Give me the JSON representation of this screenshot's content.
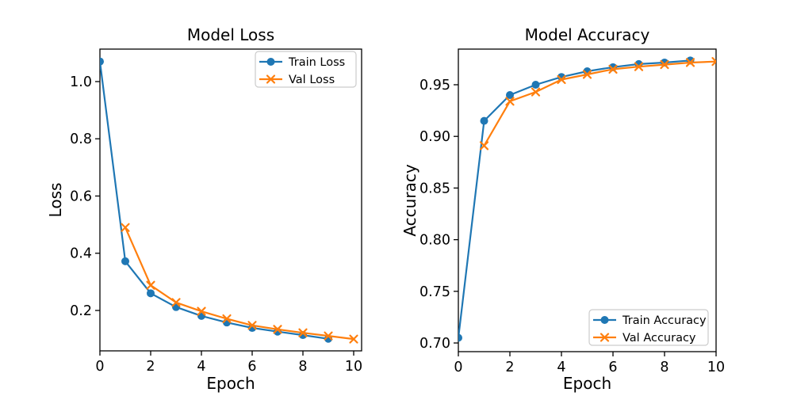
{
  "figure": {
    "background": "#ffffff"
  },
  "palette": {
    "train": "#1f77b4",
    "val": "#ff7f0e",
    "axis": "#000000",
    "text": "#000000",
    "legend_border": "#cccccc",
    "legend_bg": "#ffffff"
  },
  "chart_data": [
    {
      "id": "model-loss",
      "type": "line",
      "title": "Model Loss",
      "xlabel": "Epoch",
      "ylabel": "Loss",
      "xlim": [
        0,
        10.3125
      ],
      "ylim": [
        0.0588,
        1.1135
      ],
      "xticks": [
        0,
        2,
        4,
        6,
        8,
        10
      ],
      "xtick_labels": [
        "0",
        "2",
        "4",
        "6",
        "8",
        "10"
      ],
      "yticks": [
        0.2,
        0.4,
        0.6,
        0.8,
        1.0
      ],
      "ytick_labels": [
        "0.2",
        "0.4",
        "0.6",
        "0.8",
        "1.0"
      ],
      "grid": false,
      "legend_position": "upper right",
      "series": [
        {
          "name": "Train Loss",
          "color": "train",
          "marker": "circle",
          "x": [
            0,
            1,
            2,
            3,
            4,
            5,
            6,
            7,
            8,
            9
          ],
          "values": [
            1.07,
            0.372,
            0.26,
            0.212,
            0.181,
            0.158,
            0.139,
            0.126,
            0.114,
            0.101
          ]
        },
        {
          "name": "Val Loss",
          "color": "val",
          "marker": "x",
          "x": [
            1,
            2,
            3,
            4,
            5,
            6,
            7,
            8,
            9,
            10
          ],
          "values": [
            0.49,
            0.288,
            0.228,
            0.197,
            0.171,
            0.148,
            0.134,
            0.122,
            0.111,
            0.1
          ]
        }
      ]
    },
    {
      "id": "model-accuracy",
      "type": "line",
      "title": "Model Accuracy",
      "xlabel": "Epoch",
      "ylabel": "Accuracy",
      "xlim": [
        0,
        10
      ],
      "ylim": [
        0.6916,
        0.9845
      ],
      "xticks": [
        0,
        2,
        4,
        6,
        8,
        10
      ],
      "xtick_labels": [
        "0",
        "2",
        "4",
        "6",
        "8",
        "10"
      ],
      "yticks": [
        0.7,
        0.75,
        0.8,
        0.85,
        0.9,
        0.95
      ],
      "ytick_labels": [
        "0.70",
        "0.75",
        "0.80",
        "0.85",
        "0.90",
        "0.95"
      ],
      "grid": false,
      "legend_position": "lower right",
      "series": [
        {
          "name": "Train Accuracy",
          "color": "train",
          "marker": "circle",
          "x": [
            0,
            1,
            2,
            3,
            4,
            5,
            6,
            7,
            8,
            9
          ],
          "values": [
            0.705,
            0.915,
            0.94,
            0.95,
            0.9575,
            0.963,
            0.967,
            0.97,
            0.9715,
            0.9735
          ]
        },
        {
          "name": "Val Accuracy",
          "color": "val",
          "marker": "x",
          "x": [
            1,
            2,
            3,
            4,
            5,
            6,
            7,
            8,
            9,
            10
          ],
          "values": [
            0.891,
            0.934,
            0.943,
            0.955,
            0.96,
            0.965,
            0.9675,
            0.9695,
            0.9715,
            0.9725
          ]
        }
      ]
    }
  ]
}
